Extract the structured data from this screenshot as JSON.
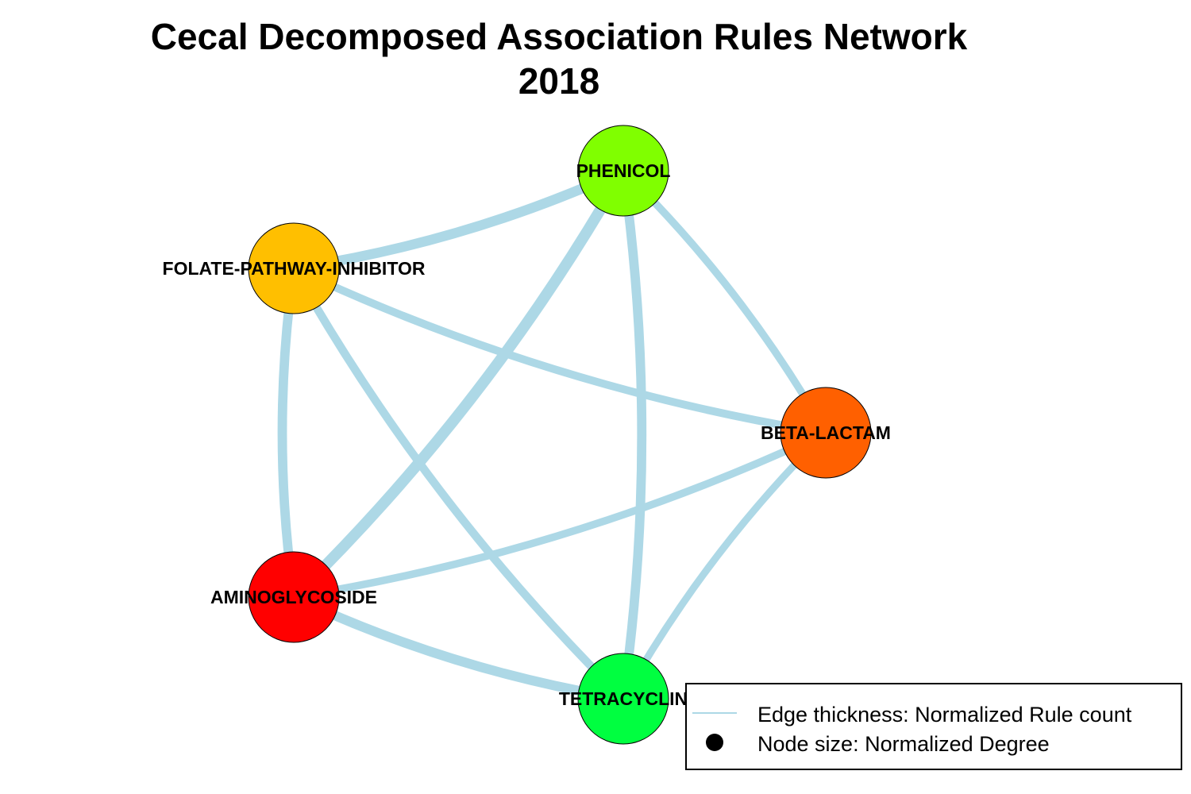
{
  "title": {
    "line1": "Cecal Decomposed Association Rules Network",
    "line2": "2018"
  },
  "colors": {
    "edge": "#add8e6",
    "node_border": "#000000"
  },
  "nodes": [
    {
      "id": "PHENICOL",
      "label": "PHENICOL",
      "color": "#80ff00"
    },
    {
      "id": "FOLATE-PATHWAY-INHIBITOR",
      "label": "FOLATE-PATHWAY-INHIBITOR",
      "color": "#ffbf00"
    },
    {
      "id": "BETA-LACTAM",
      "label": "BETA-LACTAM",
      "color": "#ff6000"
    },
    {
      "id": "AMINOGLYCOSIDE",
      "label": "AMINOGLYCOSIDE",
      "color": "#ff0000"
    },
    {
      "id": "TETRACYCLINE",
      "label": "TETRACYCLIN",
      "color": "#00ff40"
    }
  ],
  "edges": [
    {
      "source": "FOLATE-PATHWAY-INHIBITOR",
      "target": "PHENICOL",
      "weight": 0.85
    },
    {
      "source": "AMINOGLYCOSIDE",
      "target": "PHENICOL",
      "weight": 1.0
    },
    {
      "source": "TETRACYCLINE",
      "target": "PHENICOL",
      "weight": 0.75
    },
    {
      "source": "BETA-LACTAM",
      "target": "PHENICOL",
      "weight": 0.5
    },
    {
      "source": "FOLATE-PATHWAY-INHIBITOR",
      "target": "BETA-LACTAM",
      "weight": 0.55
    },
    {
      "source": "FOLATE-PATHWAY-INHIBITOR",
      "target": "AMINOGLYCOSIDE",
      "weight": 0.75
    },
    {
      "source": "FOLATE-PATHWAY-INHIBITOR",
      "target": "TETRACYCLINE",
      "weight": 0.6
    },
    {
      "source": "AMINOGLYCOSIDE",
      "target": "BETA-LACTAM",
      "weight": 0.5
    },
    {
      "source": "AMINOGLYCOSIDE",
      "target": "TETRACYCLINE",
      "weight": 0.8
    },
    {
      "source": "BETA-LACTAM",
      "target": "TETRACYCLINE",
      "weight": 0.45
    }
  ],
  "legend": {
    "edge_label": "Edge thickness: Normalized Rule count",
    "node_label": "Node size: Normalized Degree"
  }
}
